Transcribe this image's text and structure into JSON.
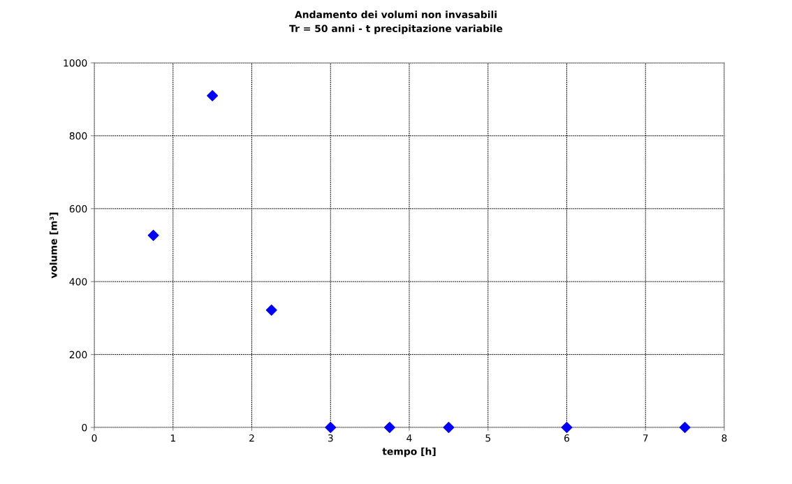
{
  "chart_data": {
    "type": "scatter",
    "title": "Andamento dei volumi non invasabili",
    "subtitle": "Tr = 50 anni - t precipitazione variabile",
    "xlabel": "tempo [h]",
    "ylabel": "volume [m³]",
    "x": [
      0.75,
      1.5,
      2.25,
      3,
      3.75,
      4.5,
      6,
      7.5
    ],
    "series": [
      {
        "color": "#0000ff",
        "values": [
          527,
          910,
          322,
          0,
          0,
          0,
          0,
          0
        ]
      }
    ],
    "xlim": [
      0,
      8
    ],
    "xticks": [
      0,
      1,
      2,
      3,
      4,
      5,
      6,
      7,
      8
    ],
    "ylim": [
      0,
      1000
    ],
    "yticks": [
      0,
      200,
      400,
      600,
      800,
      1000
    ],
    "grid": true,
    "marker": "diamond"
  }
}
